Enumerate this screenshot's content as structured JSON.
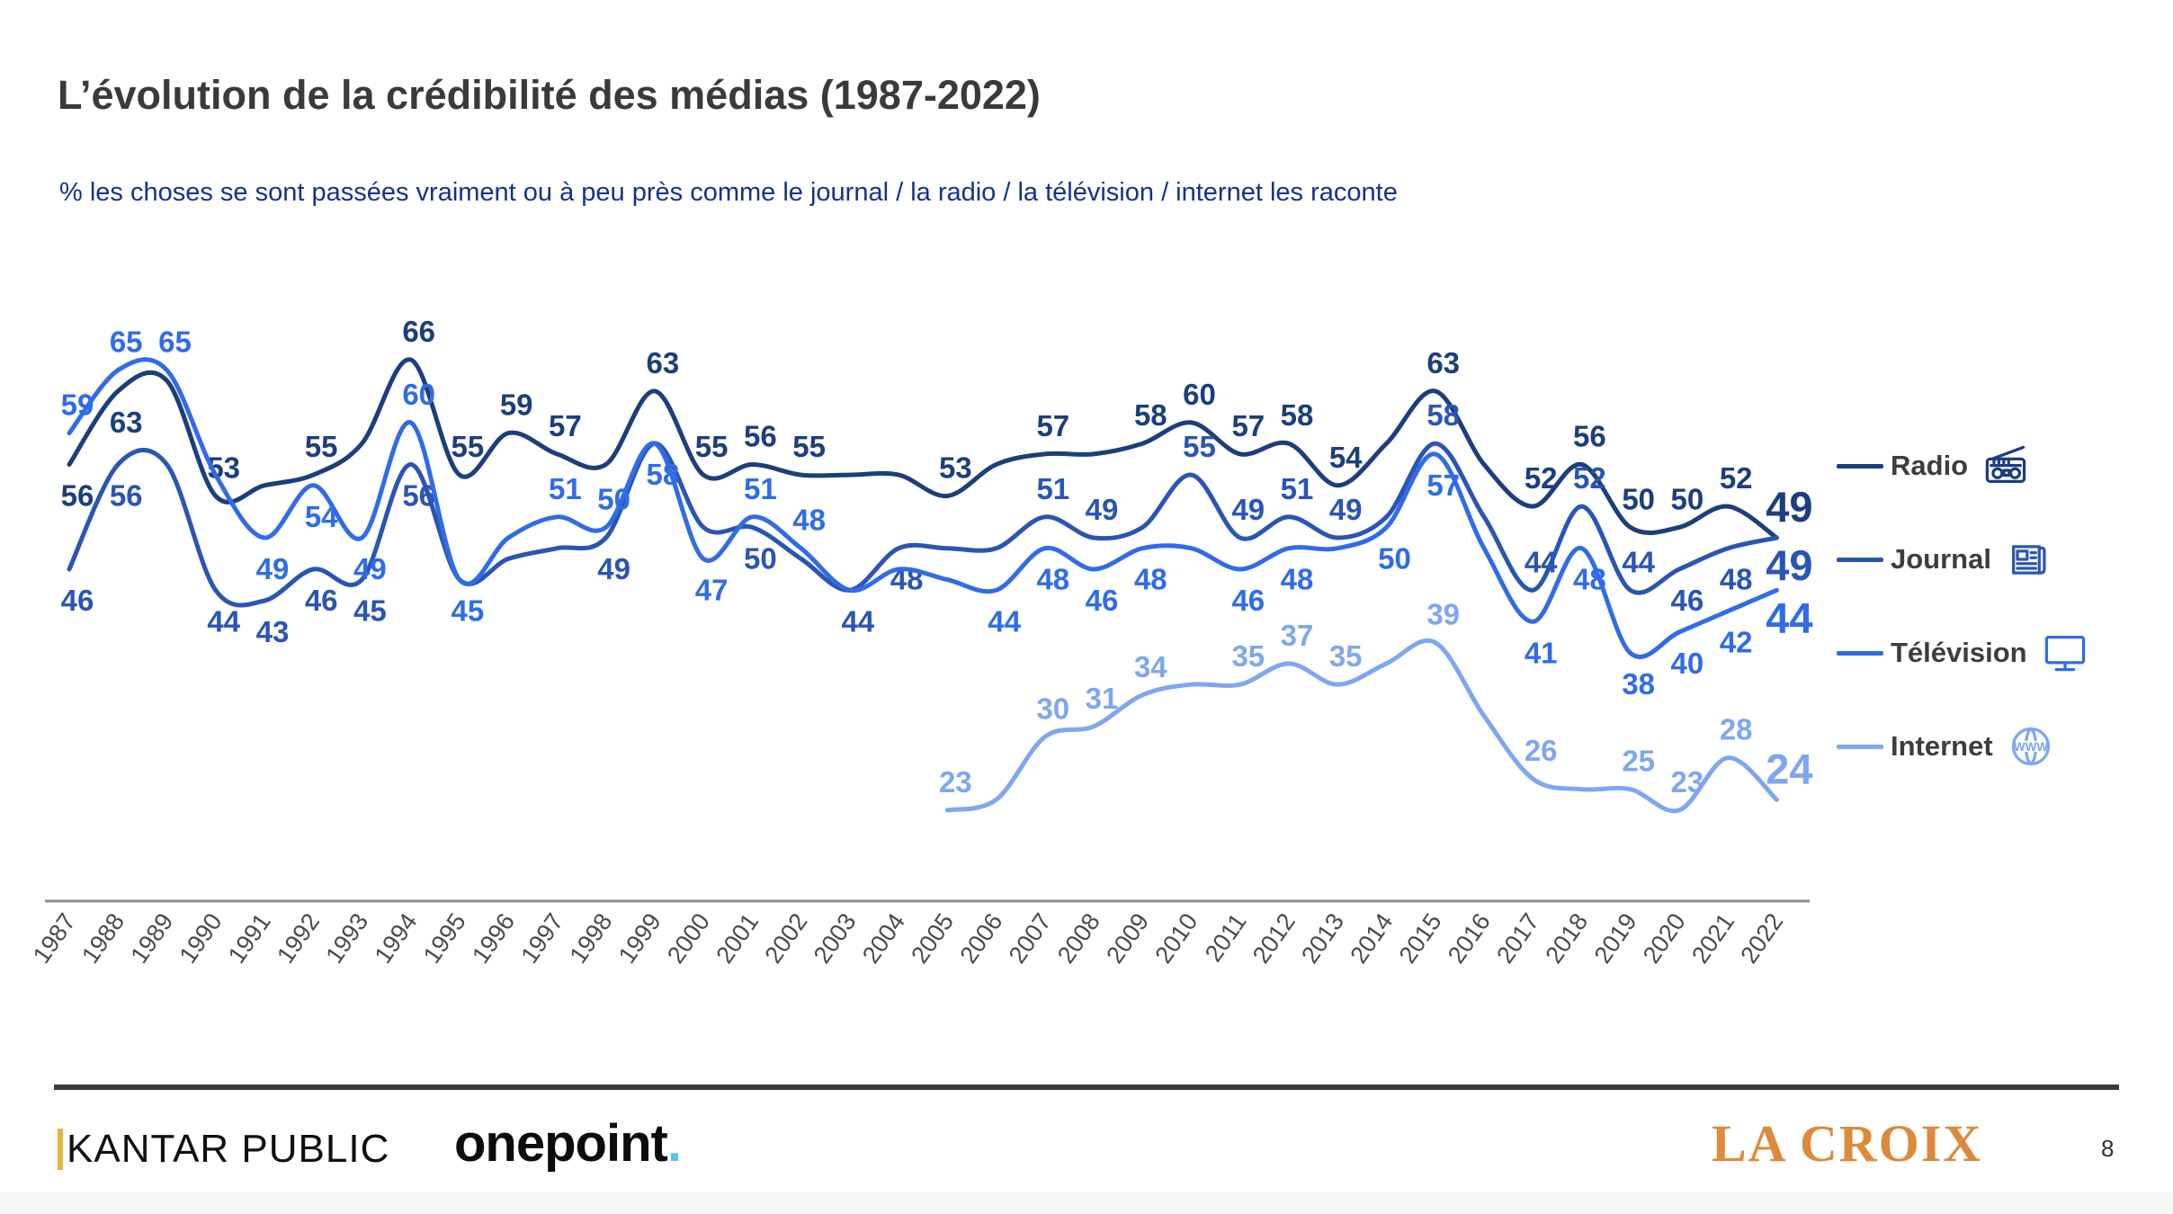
{
  "header": {
    "title": "L’évolution de la crédibilité des médias (1987-2022)",
    "subtitle": "% les choses se sont passées vraiment ou à peu près comme le journal / la radio / la télévision / internet les raconte"
  },
  "chart_data": {
    "type": "line",
    "title": "L’évolution de la crédibilité des médias (1987-2022)",
    "xlabel": "",
    "ylabel": "",
    "grid": false,
    "y_axis_visible": false,
    "legend_position": "right",
    "x_ticks": [
      "1987",
      "1988",
      "1989",
      "1990",
      "1991",
      "1992",
      "1993",
      "1994",
      "1995",
      "1996",
      "1997",
      "1998",
      "1999",
      "2000",
      "2001",
      "2002",
      "2003",
      "2004",
      "2005",
      "2006",
      "2007",
      "2008",
      "2009",
      "2010",
      "2011",
      "2012",
      "2013",
      "2014",
      "2015",
      "2016",
      "2017",
      "2018",
      "2019",
      "2020",
      "2021",
      "2022"
    ],
    "x_range": [
      1987,
      2022
    ],
    "y_range_implied": [
      20,
      70
    ],
    "axis_color": "#8c8c8c",
    "tick_label_color": "#4a4a4a",
    "point_format": "[year, value, label_visible(0/1), label_side('a'=above,'b'=below)]",
    "series": [
      {
        "name": "Radio",
        "color": "#1c3e7d",
        "icon": "radio-icon",
        "points": [
          [
            1987,
            56,
            1,
            "b"
          ],
          [
            1988,
            63,
            1,
            "b"
          ],
          [
            1989,
            64,
            0
          ],
          [
            1990,
            53,
            1,
            "a"
          ],
          [
            1991,
            54,
            0
          ],
          [
            1992,
            55,
            1,
            "a"
          ],
          [
            1993,
            58,
            0
          ],
          [
            1994,
            66,
            1,
            "a"
          ],
          [
            1995,
            55,
            1,
            "a"
          ],
          [
            1996,
            59,
            1,
            "a"
          ],
          [
            1997,
            57,
            1,
            "a"
          ],
          [
            1998,
            56,
            0
          ],
          [
            1999,
            63,
            1,
            "a"
          ],
          [
            2000,
            55,
            1,
            "a"
          ],
          [
            2001,
            56,
            1,
            "a"
          ],
          [
            2002,
            55,
            1,
            "a"
          ],
          [
            2003,
            55,
            0
          ],
          [
            2004,
            55,
            0
          ],
          [
            2005,
            53,
            1,
            "a"
          ],
          [
            2006,
            56,
            0
          ],
          [
            2007,
            57,
            1,
            "a"
          ],
          [
            2008,
            57,
            0
          ],
          [
            2009,
            58,
            1,
            "a"
          ],
          [
            2010,
            60,
            1,
            "a"
          ],
          [
            2011,
            57,
            1,
            "a"
          ],
          [
            2012,
            58,
            1,
            "a"
          ],
          [
            2013,
            54,
            1,
            "a"
          ],
          [
            2014,
            58,
            0
          ],
          [
            2015,
            63,
            1,
            "a"
          ],
          [
            2016,
            56,
            0
          ],
          [
            2017,
            52,
            1,
            "a"
          ],
          [
            2018,
            56,
            1,
            "a"
          ],
          [
            2019,
            50,
            1,
            "a"
          ],
          [
            2020,
            50,
            1,
            "a"
          ],
          [
            2021,
            52,
            1,
            "a"
          ],
          [
            2022,
            49,
            1,
            "a"
          ]
        ]
      },
      {
        "name": "Journal",
        "color": "#2a55b4",
        "icon": "newspaper-icon",
        "points": [
          [
            1987,
            46,
            1,
            "b"
          ],
          [
            1988,
            56,
            1,
            "b"
          ],
          [
            1989,
            56,
            0
          ],
          [
            1990,
            44,
            1,
            "b"
          ],
          [
            1991,
            43,
            1,
            "b"
          ],
          [
            1992,
            46,
            1,
            "b"
          ],
          [
            1993,
            45,
            1,
            "b"
          ],
          [
            1994,
            56,
            1,
            "b"
          ],
          [
            1995,
            45,
            0
          ],
          [
            1996,
            47,
            0
          ],
          [
            1997,
            48,
            0
          ],
          [
            1998,
            49,
            1,
            "b"
          ],
          [
            1999,
            58,
            0
          ],
          [
            2000,
            50,
            0
          ],
          [
            2001,
            50,
            1,
            "b"
          ],
          [
            2002,
            47,
            0
          ],
          [
            2003,
            44,
            1,
            "b"
          ],
          [
            2004,
            48,
            1,
            "b"
          ],
          [
            2005,
            48,
            0
          ],
          [
            2006,
            48,
            0
          ],
          [
            2007,
            51,
            1,
            "a"
          ],
          [
            2008,
            49,
            1,
            "a"
          ],
          [
            2009,
            50,
            0
          ],
          [
            2010,
            55,
            1,
            "a"
          ],
          [
            2011,
            49,
            1,
            "a"
          ],
          [
            2012,
            51,
            1,
            "a"
          ],
          [
            2013,
            49,
            1,
            "a"
          ],
          [
            2014,
            51,
            0
          ],
          [
            2015,
            58,
            1,
            "a"
          ],
          [
            2016,
            51,
            0
          ],
          [
            2017,
            44,
            1,
            "a"
          ],
          [
            2018,
            52,
            1,
            "a"
          ],
          [
            2019,
            44,
            1,
            "a"
          ],
          [
            2020,
            46,
            1,
            "b"
          ],
          [
            2021,
            48,
            1,
            "b"
          ],
          [
            2022,
            49,
            1,
            "b"
          ]
        ]
      },
      {
        "name": "Télévision",
        "color": "#306ce8",
        "icon": "tv-icon",
        "points": [
          [
            1987,
            59,
            1,
            "a"
          ],
          [
            1988,
            65,
            1,
            "a"
          ],
          [
            1989,
            65,
            1,
            "a"
          ],
          [
            1990,
            55,
            0
          ],
          [
            1991,
            49,
            1,
            "b"
          ],
          [
            1992,
            54,
            1,
            "b"
          ],
          [
            1993,
            49,
            1,
            "b"
          ],
          [
            1994,
            60,
            1,
            "a"
          ],
          [
            1995,
            45,
            1,
            "b"
          ],
          [
            1996,
            49,
            0
          ],
          [
            1997,
            51,
            1,
            "a"
          ],
          [
            1998,
            50,
            1,
            "a"
          ],
          [
            1999,
            58,
            1,
            "b"
          ],
          [
            2000,
            47,
            1,
            "b"
          ],
          [
            2001,
            51,
            1,
            "a"
          ],
          [
            2002,
            48,
            1,
            "a"
          ],
          [
            2003,
            44,
            0
          ],
          [
            2004,
            46,
            0
          ],
          [
            2005,
            45,
            0
          ],
          [
            2006,
            44,
            1,
            "b"
          ],
          [
            2007,
            48,
            1,
            "b"
          ],
          [
            2008,
            46,
            1,
            "b"
          ],
          [
            2009,
            48,
            1,
            "b"
          ],
          [
            2010,
            48,
            0
          ],
          [
            2011,
            46,
            1,
            "b"
          ],
          [
            2012,
            48,
            1,
            "b"
          ],
          [
            2013,
            48,
            0
          ],
          [
            2014,
            50,
            1,
            "b"
          ],
          [
            2015,
            57,
            1,
            "b"
          ],
          [
            2016,
            48,
            0
          ],
          [
            2017,
            41,
            1,
            "b"
          ],
          [
            2018,
            48,
            1,
            "b"
          ],
          [
            2019,
            38,
            1,
            "b"
          ],
          [
            2020,
            40,
            1,
            "b"
          ],
          [
            2021,
            42,
            1,
            "b"
          ],
          [
            2022,
            44,
            1,
            "b"
          ]
        ]
      },
      {
        "name": "Internet",
        "color": "#7ea7f0",
        "icon": "globe-icon",
        "points": [
          [
            2005,
            23,
            1,
            "a"
          ],
          [
            2006,
            24,
            0
          ],
          [
            2007,
            30,
            1,
            "a"
          ],
          [
            2008,
            31,
            1,
            "a"
          ],
          [
            2009,
            34,
            1,
            "a"
          ],
          [
            2010,
            35,
            0
          ],
          [
            2011,
            35,
            1,
            "a"
          ],
          [
            2012,
            37,
            1,
            "a"
          ],
          [
            2013,
            35,
            1,
            "a"
          ],
          [
            2014,
            37,
            0
          ],
          [
            2015,
            39,
            1,
            "a"
          ],
          [
            2016,
            32,
            0
          ],
          [
            2017,
            26,
            1,
            "a"
          ],
          [
            2018,
            25,
            0
          ],
          [
            2019,
            25,
            1,
            "a"
          ],
          [
            2020,
            23,
            1,
            "a"
          ],
          [
            2021,
            28,
            1,
            "a"
          ],
          [
            2022,
            24,
            1,
            "a"
          ]
        ]
      }
    ]
  },
  "footer": {
    "kantar": "KANTAR PUBLIC",
    "onepoint": "onepoint",
    "onepoint_dot": ".",
    "lacroix": "LA CROIX",
    "page_number": "8",
    "colors": {
      "lacroix_orange": "#dd8a3b",
      "onepoint_cyan": "#55c6e4",
      "kantar_yellow": "#e6b53c",
      "rule_dark": "#3b3b3b"
    }
  }
}
